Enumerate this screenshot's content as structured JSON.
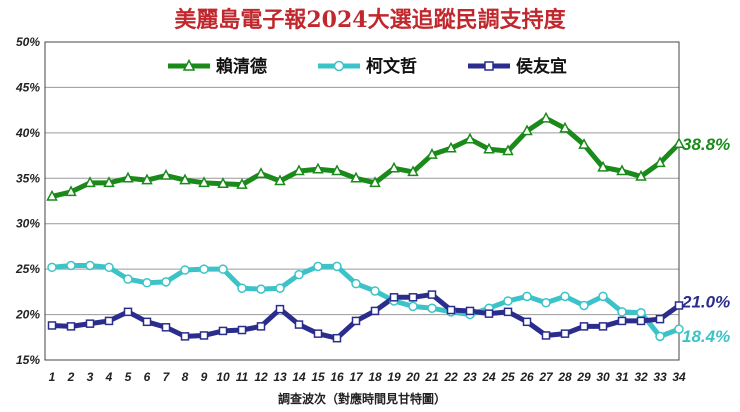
{
  "chart_data": {
    "type": "line",
    "title": "美麗島電子報2024大選追蹤民調支持度",
    "xlabel": "調查波次（對應時間見甘特圖）",
    "ylabel": "",
    "x": [
      1,
      2,
      3,
      4,
      5,
      6,
      7,
      8,
      9,
      10,
      11,
      12,
      13,
      14,
      15,
      16,
      17,
      18,
      19,
      20,
      21,
      22,
      23,
      24,
      25,
      26,
      27,
      28,
      29,
      30,
      31,
      32,
      33,
      34
    ],
    "ylim": [
      15,
      50
    ],
    "yticks": [
      "15%",
      "20%",
      "25%",
      "30%",
      "35%",
      "40%",
      "45%",
      "50%"
    ],
    "grid": "horizontal",
    "legend_position": "top-right",
    "series": [
      {
        "name": "賴清德",
        "color": "#1a8a1a",
        "marker": "triangle",
        "values": [
          33.0,
          33.5,
          34.5,
          34.5,
          35.0,
          34.8,
          35.3,
          34.8,
          34.5,
          34.4,
          34.3,
          35.5,
          34.7,
          35.8,
          36.0,
          35.8,
          35.0,
          34.5,
          36.1,
          35.7,
          37.6,
          38.3,
          39.3,
          38.2,
          38.0,
          40.2,
          41.6,
          40.5,
          38.7,
          36.2,
          35.8,
          35.2,
          36.7,
          38.8
        ],
        "end_label": "38.8%"
      },
      {
        "name": "柯文哲",
        "color": "#3cc3c8",
        "marker": "circle",
        "values": [
          25.2,
          25.4,
          25.4,
          25.2,
          23.9,
          23.5,
          23.6,
          24.9,
          25.0,
          25.0,
          22.9,
          22.8,
          22.9,
          24.4,
          25.3,
          25.3,
          23.4,
          22.6,
          21.5,
          20.9,
          20.7,
          20.3,
          20.0,
          20.7,
          21.5,
          22.0,
          21.3,
          22.0,
          21.0,
          22.0,
          20.3,
          20.2,
          17.6,
          18.4
        ],
        "end_label": "18.4%"
      },
      {
        "name": "侯友宜",
        "color": "#2b2d8c",
        "marker": "square",
        "values": [
          18.8,
          18.7,
          19.0,
          19.3,
          20.3,
          19.2,
          18.6,
          17.6,
          17.7,
          18.2,
          18.3,
          18.7,
          20.6,
          18.9,
          17.9,
          17.4,
          19.3,
          20.4,
          21.9,
          21.9,
          22.2,
          20.5,
          20.4,
          20.1,
          20.3,
          19.2,
          17.7,
          17.9,
          18.7,
          18.7,
          19.3,
          19.3,
          19.5,
          21.0
        ],
        "end_label": "21.0%"
      }
    ]
  }
}
